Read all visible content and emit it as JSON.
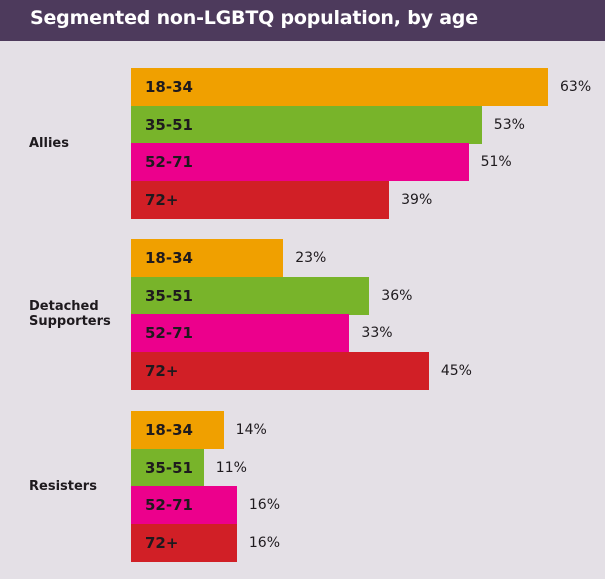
{
  "chart_data": {
    "type": "bar",
    "orientation": "horizontal",
    "title": "Segmented non-LGBTQ population, by age",
    "categories": [
      "Allies",
      "Detached Supporters",
      "Resisters"
    ],
    "series": [
      {
        "name": "18-34",
        "color": "#f0a000",
        "values": [
          63,
          23,
          14
        ]
      },
      {
        "name": "35-51",
        "color": "#78b42a",
        "values": [
          53,
          36,
          11
        ]
      },
      {
        "name": "52-71",
        "color": "#ec008c",
        "values": [
          51,
          33,
          16
        ]
      },
      {
        "name": "72+",
        "color": "#d11f26",
        "values": [
          39,
          45,
          16
        ]
      }
    ],
    "value_suffix": "%",
    "xlim": [
      0,
      63
    ],
    "grid": false,
    "legend": "none (labels inside bars)"
  }
}
